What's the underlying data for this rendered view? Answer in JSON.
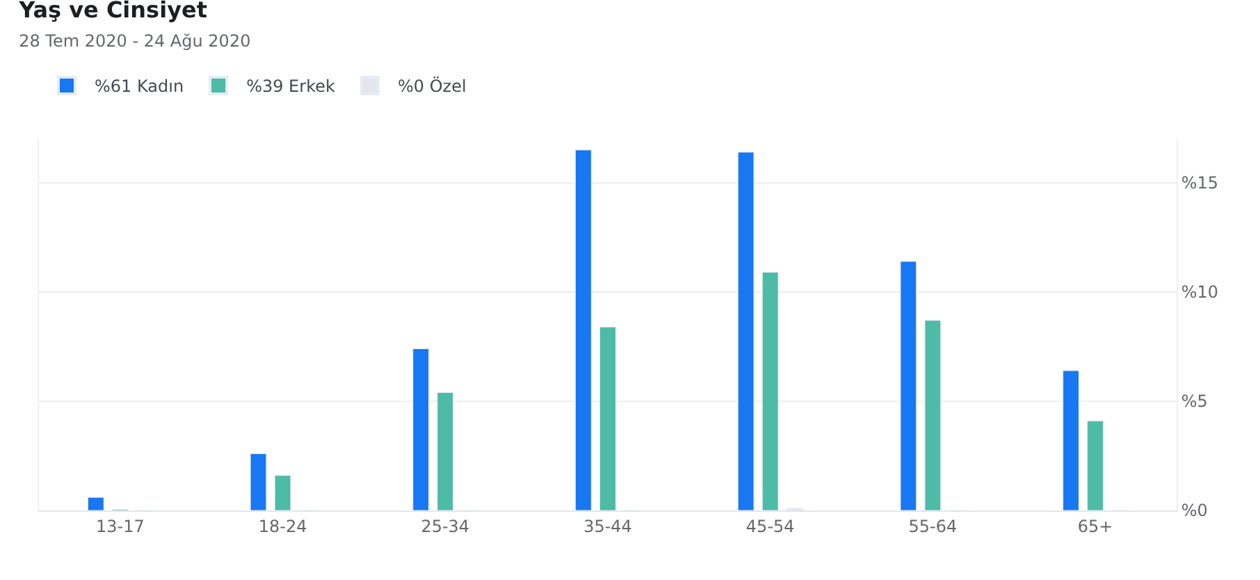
{
  "chart_data": {
    "type": "bar",
    "title": "Yaş ve Cinsiyet",
    "subtitle": "28 Tem 2020 - 24 Ağu 2020",
    "categories": [
      "13-17",
      "18-24",
      "25-34",
      "35-44",
      "45-54",
      "55-64",
      "65+"
    ],
    "series": [
      {
        "name": "%61 Kadın",
        "color": "#1877f2",
        "values": [
          0.6,
          2.6,
          7.4,
          16.5,
          16.4,
          11.4,
          6.4
        ]
      },
      {
        "name": "%39 Erkek",
        "color": "#4dbba6",
        "values": [
          0.05,
          1.6,
          5.4,
          8.4,
          10.9,
          8.7,
          4.1
        ]
      },
      {
        "name": "%0 Özel",
        "color": "#e4e6eb",
        "values": [
          0,
          0,
          0,
          0,
          0.1,
          0,
          0
        ]
      }
    ],
    "ylim": [
      0,
      17
    ],
    "yticks": [
      {
        "value": 0,
        "label": "%0"
      },
      {
        "value": 5,
        "label": "%5"
      },
      {
        "value": 10,
        "label": "%10"
      },
      {
        "value": 15,
        "label": "%15"
      }
    ],
    "grid": "y",
    "legend": "top left"
  }
}
